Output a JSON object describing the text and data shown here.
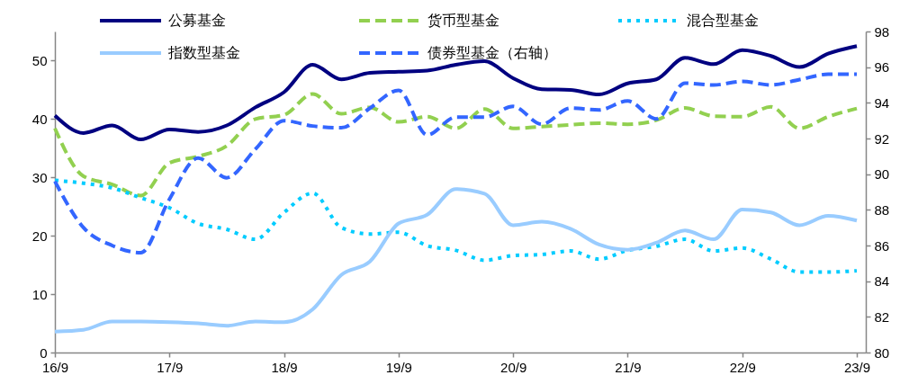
{
  "chart_data": {
    "type": "line",
    "categories": [
      "16/9",
      null,
      null,
      null,
      "17/9",
      null,
      null,
      null,
      "18/9",
      null,
      null,
      null,
      "19/9",
      null,
      null,
      null,
      "20/9",
      null,
      null,
      null,
      "21/9",
      null,
      null,
      null,
      "22/9",
      null,
      null,
      null,
      "23/9"
    ],
    "ylim": [
      0,
      55
    ],
    "yticks": [
      0,
      10,
      20,
      30,
      40,
      50
    ],
    "y2lim": [
      80,
      98
    ],
    "y2ticks": [
      80,
      82,
      84,
      86,
      88,
      90,
      92,
      94,
      96,
      98
    ],
    "legend": "top",
    "series": [
      {
        "name": "公募基金",
        "color": "#000080",
        "line_style": "solid",
        "values": [
          40.6,
          37.6,
          38.9,
          36.5,
          38.2,
          37.8,
          38.9,
          42.0,
          44.6,
          49.3,
          46.8,
          47.9,
          48.1,
          48.3,
          49.3,
          49.9,
          47.0,
          45.1,
          45.0,
          44.2,
          46.1,
          46.8,
          50.5,
          49.4,
          51.8,
          50.8,
          48.9,
          51.2,
          52.5
        ]
      },
      {
        "name": "货币型基金",
        "color": "#92d050",
        "line_style": "dashed",
        "values": [
          38.4,
          30.2,
          28.8,
          26.9,
          32.5,
          33.6,
          35.4,
          40.0,
          40.7,
          44.3,
          40.9,
          42.0,
          39.5,
          40.4,
          38.4,
          41.7,
          38.4,
          38.7,
          39.0,
          39.3,
          39.1,
          39.8,
          41.9,
          40.5,
          40.4,
          42.1,
          38.4,
          40.4,
          41.8
        ]
      },
      {
        "name": "混合型基金",
        "color": "#00ccff",
        "line_style": "dotted",
        "values": [
          29.5,
          29.0,
          28.2,
          26.5,
          24.8,
          22.1,
          21.1,
          19.4,
          24.0,
          27.3,
          21.4,
          20.3,
          20.6,
          18.3,
          17.5,
          15.8,
          16.6,
          16.8,
          17.4,
          16.0,
          17.5,
          18.2,
          19.4,
          17.4,
          17.9,
          16.0,
          13.8,
          13.8,
          14.0
        ]
      },
      {
        "name": "指数型基金",
        "color": "#99ccff",
        "line_style": "solid",
        "values": [
          3.6,
          3.9,
          5.3,
          5.3,
          5.2,
          5.0,
          4.6,
          5.3,
          5.2,
          7.4,
          13.3,
          15.6,
          22.1,
          23.6,
          28.0,
          27.2,
          21.8,
          22.4,
          21.2,
          18.5,
          17.6,
          18.8,
          20.9,
          19.4,
          24.5,
          24.0,
          21.8,
          23.4,
          22.6
        ]
      },
      {
        "name": "债券型基金（右轴）",
        "color": "#3366ff",
        "line_style": "dashed",
        "axis": "y2",
        "values": [
          89.6,
          87.0,
          86.0,
          85.6,
          88.6,
          90.9,
          89.8,
          91.4,
          93.0,
          92.7,
          92.6,
          93.7,
          94.7,
          92.2,
          93.2,
          93.2,
          93.8,
          92.8,
          93.7,
          93.6,
          94.1,
          93.1,
          95.1,
          95.0,
          95.2,
          95.0,
          95.3,
          95.6,
          95.6
        ]
      }
    ]
  }
}
